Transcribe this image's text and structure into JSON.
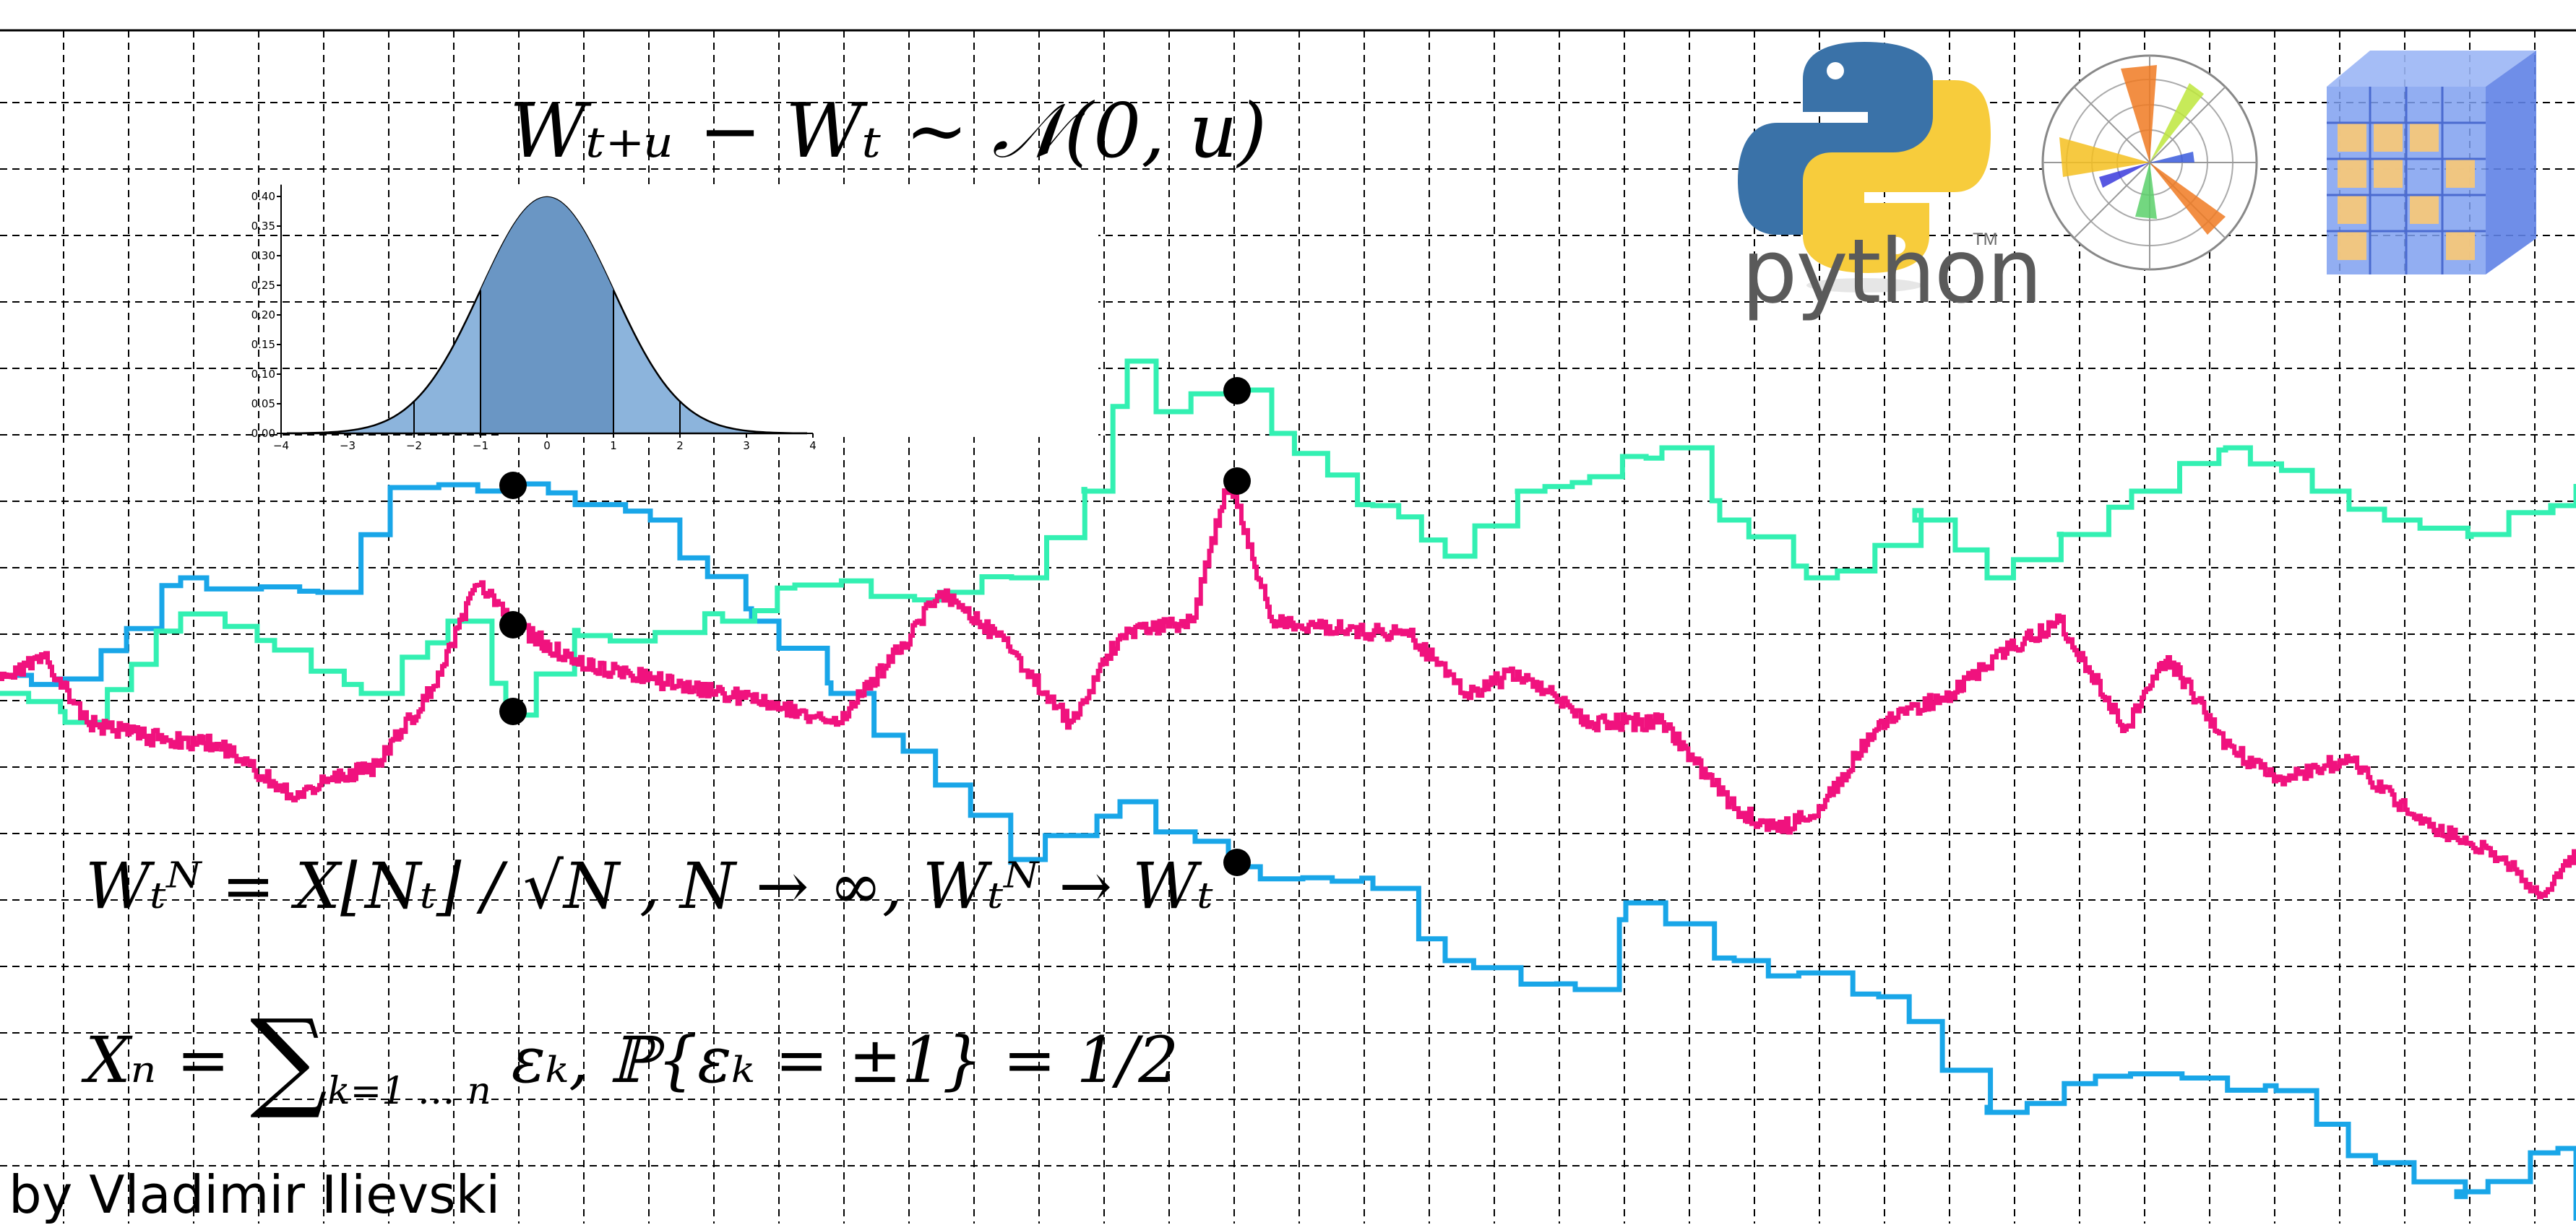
{
  "formulas": {
    "increment": "Wₜ₊ᵤ − Wₜ ~ 𝒩(0, u)",
    "scaling": "Wₜᴺ = X⌊Nₜ⌋ / √N , N → ∞, Wₜᴺ → Wₜ",
    "walk_lhs": "Xₙ = ",
    "walk_sum": "∑",
    "walk_bounds": "k=1 … n",
    "walk_rhs": "εₖ, ℙ{εₖ = ±1} = 1/2"
  },
  "author": "by Vladimir Ilievski",
  "logos": {
    "python_text": "python",
    "python_tm": "TM",
    "python_icon": "python-icon",
    "polar_icon": "polar-chart-icon",
    "cube_icon": "voxel-cube-icon"
  },
  "colors": {
    "grid": "#000000",
    "cyan_walk": "#19a6e8",
    "teal_walk": "#33f0b2",
    "magenta_walk": "#f0127e",
    "normal_fill_dark": "#6a96c4",
    "normal_fill_light": "#8cb4dc"
  },
  "normal_inset": {
    "x_ticks": [
      "−4",
      "−3",
      "−2",
      "−1",
      "0",
      "1",
      "2",
      "3",
      "4"
    ],
    "y_ticks": [
      "0.00",
      "0.05",
      "0.10",
      "0.15",
      "0.20",
      "0.25",
      "0.30",
      "0.35",
      "0.40"
    ]
  }
}
